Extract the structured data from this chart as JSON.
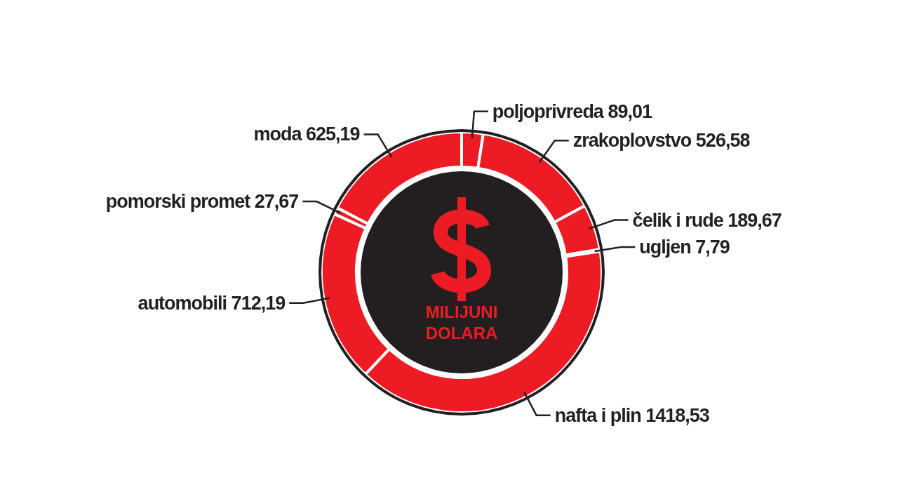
{
  "chart_data": {
    "type": "donut",
    "title": "MILIJUNI DOLARA",
    "categories": [
      "poljoprivreda",
      "zrakoplovstvo",
      "čelik i rude",
      "ugljen",
      "nafta i plin",
      "automobili",
      "pomorski promet",
      "moda"
    ],
    "values": [
      89.01,
      526.58,
      189.67,
      7.79,
      1418.53,
      712.19,
      27.67,
      625.19
    ],
    "value_labels": [
      "89,01",
      "526,58",
      "189,67",
      "7,79",
      "1418,53",
      "712,19",
      "27,67",
      "625,19"
    ],
    "colors": [
      "#ed1c24",
      "#ed1c24",
      "#ed1c24",
      "#ed1c24",
      "#ed1c24",
      "#ed1c24",
      "#ed1c24",
      "#ed1c24"
    ]
  }
}
